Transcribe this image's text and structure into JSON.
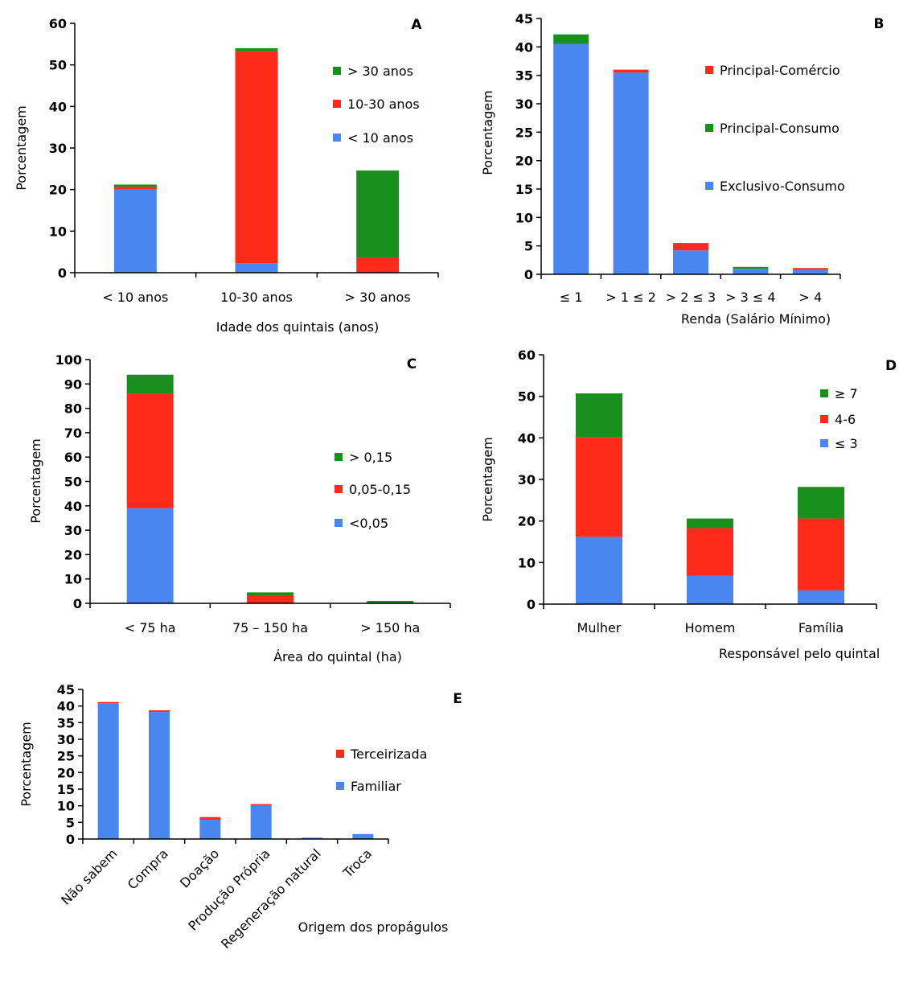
{
  "chart_data": [
    {
      "id": "A",
      "type": "bar",
      "stacked": true,
      "panel_label": "A",
      "xlabel": "Idade dos quintais (anos)",
      "ylabel": "Porcentagem",
      "ylim": [
        0,
        60
      ],
      "yticks": [
        "0",
        "10",
        "20",
        "30",
        "40",
        "50",
        "60"
      ],
      "categories": [
        "< 10 anos",
        "10-30 anos",
        "> 30 anos"
      ],
      "legend_position": "right",
      "series": [
        {
          "name": "< 10 anos",
          "color": "#4a86f0",
          "values": [
            20.0,
            2.3,
            0.0
          ]
        },
        {
          "name": "10-30 anos",
          "color": "#ff2a1a",
          "values": [
            0.7,
            51.0,
            3.6
          ]
        },
        {
          "name": "> 30 anos",
          "color": "#17901c",
          "values": [
            0.5,
            0.7,
            21.0
          ]
        }
      ]
    },
    {
      "id": "B",
      "type": "bar",
      "stacked": true,
      "panel_label": "B",
      "xlabel": "Renda (Salário Mínimo)",
      "ylabel": "Porcentagem",
      "ylim": [
        0,
        45
      ],
      "yticks": [
        "0",
        "5",
        "10",
        "15",
        "20",
        "25",
        "30",
        "35",
        "40",
        "45"
      ],
      "categories": [
        "≤ 1",
        "> 1 ≤ 2",
        "> 2 ≤ 3",
        "> 3 ≤ 4",
        "> 4"
      ],
      "legend_position": "right",
      "series": [
        {
          "name": "Exclusivo-Consumo",
          "color": "#4a86f0",
          "values": [
            40.5,
            35.5,
            4.2,
            1.0,
            0.8
          ]
        },
        {
          "name": "Principal-Consumo",
          "color": "#17901c",
          "values": [
            1.7,
            0.0,
            0.0,
            0.3,
            0.0
          ]
        },
        {
          "name": "Principal-Comércio",
          "color": "#ff2a1a",
          "values": [
            0.0,
            0.5,
            1.3,
            0.0,
            0.3
          ]
        }
      ]
    },
    {
      "id": "C",
      "type": "bar",
      "stacked": true,
      "panel_label": "C",
      "xlabel": "Área do quintal (ha)",
      "ylabel": "Porcentagem",
      "ylim": [
        0,
        100
      ],
      "yticks": [
        "0",
        "10",
        "20",
        "30",
        "40",
        "50",
        "60",
        "70",
        "80",
        "90",
        "100"
      ],
      "categories": [
        "< 75 ha",
        "75 – 150 ha",
        "> 150 ha"
      ],
      "legend_position": "right",
      "series": [
        {
          "name": "<0,05",
          "color": "#4a86f0",
          "values": [
            39.0,
            0.0,
            0.0
          ]
        },
        {
          "name": "0,05-0,15",
          "color": "#ff2a1a",
          "values": [
            47.0,
            3.3,
            0.0
          ]
        },
        {
          "name": "> 0,15",
          "color": "#17901c",
          "values": [
            7.8,
            1.2,
            1.0
          ]
        }
      ]
    },
    {
      "id": "D",
      "type": "bar",
      "stacked": true,
      "panel_label": "D",
      "xlabel": "Responsável pelo quintal",
      "ylabel": "Porcentagem",
      "ylim": [
        0,
        60
      ],
      "yticks": [
        "0",
        "10",
        "20",
        "30",
        "40",
        "50",
        "60"
      ],
      "categories": [
        "Mulher",
        "Homem",
        "Família"
      ],
      "legend_position": "top-right",
      "series": [
        {
          "name": "≤ 3",
          "color": "#4a86f0",
          "values": [
            16.2,
            6.8,
            3.3
          ]
        },
        {
          "name": "4-6",
          "color": "#ff2a1a",
          "values": [
            24.0,
            11.5,
            17.3
          ]
        },
        {
          "name": "≥ 7",
          "color": "#17901c",
          "values": [
            10.5,
            2.3,
            7.6
          ]
        }
      ]
    },
    {
      "id": "E",
      "type": "bar",
      "stacked": true,
      "panel_label": "E",
      "xlabel": "Origem dos propágulos",
      "ylabel": "Porcentagem",
      "ylim": [
        0,
        45
      ],
      "yticks": [
        "0",
        "5",
        "10",
        "15",
        "20",
        "25",
        "30",
        "35",
        "40",
        "45"
      ],
      "categories": [
        "Não sabem",
        "Compra",
        "Doação",
        "Produção Própria",
        "Regeneração natural",
        "Troca"
      ],
      "legend_position": "right",
      "series": [
        {
          "name": "Familiar",
          "color": "#4a86f0",
          "values": [
            40.8,
            38.2,
            5.8,
            10.0,
            0.4,
            1.5
          ]
        },
        {
          "name": "Terceirizada",
          "color": "#ff2a1a",
          "values": [
            0.4,
            0.5,
            0.8,
            0.5,
            0.0,
            0.0
          ]
        }
      ]
    }
  ]
}
